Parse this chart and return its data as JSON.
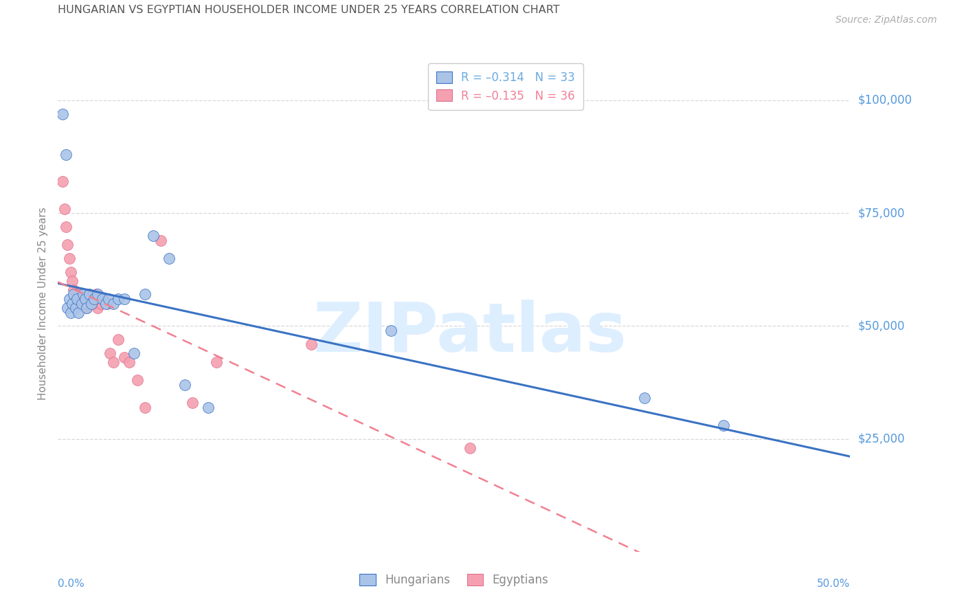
{
  "title": "HUNGARIAN VS EGYPTIAN HOUSEHOLDER INCOME UNDER 25 YEARS CORRELATION CHART",
  "source": "Source: ZipAtlas.com",
  "ylabel": "Householder Income Under 25 years",
  "right_yticks": [
    "$100,000",
    "$75,000",
    "$50,000",
    "$25,000"
  ],
  "right_ytick_values": [
    100000,
    75000,
    50000,
    25000
  ],
  "xlim": [
    0.0,
    0.5
  ],
  "ylim": [
    0,
    110000
  ],
  "watermark": "ZIPatlas",
  "legend": [
    {
      "label": "R = –0.314   N = 33",
      "color": "#6aaae0"
    },
    {
      "label": "R = –0.135   N = 36",
      "color": "#f08098"
    }
  ],
  "hungarian_x": [
    0.003,
    0.005,
    0.006,
    0.007,
    0.008,
    0.009,
    0.01,
    0.011,
    0.012,
    0.013,
    0.015,
    0.016,
    0.017,
    0.018,
    0.02,
    0.021,
    0.023,
    0.025,
    0.028,
    0.03,
    0.032,
    0.035,
    0.038,
    0.042,
    0.048,
    0.055,
    0.06,
    0.07,
    0.08,
    0.095,
    0.21,
    0.37,
    0.42
  ],
  "hungarian_y": [
    97000,
    88000,
    54000,
    56000,
    53000,
    55000,
    57000,
    54000,
    56000,
    53000,
    55000,
    57000,
    56000,
    54000,
    57000,
    55000,
    56000,
    57000,
    56000,
    55000,
    56000,
    55000,
    56000,
    56000,
    44000,
    57000,
    70000,
    65000,
    37000,
    32000,
    49000,
    34000,
    28000
  ],
  "egyptian_x": [
    0.003,
    0.004,
    0.005,
    0.006,
    0.007,
    0.008,
    0.009,
    0.01,
    0.011,
    0.012,
    0.013,
    0.014,
    0.015,
    0.016,
    0.017,
    0.018,
    0.019,
    0.02,
    0.022,
    0.024,
    0.025,
    0.027,
    0.029,
    0.031,
    0.033,
    0.035,
    0.038,
    0.042,
    0.045,
    0.05,
    0.055,
    0.065,
    0.085,
    0.1,
    0.16,
    0.26
  ],
  "egyptian_y": [
    82000,
    76000,
    72000,
    68000,
    65000,
    62000,
    60000,
    58000,
    57000,
    56000,
    55000,
    57000,
    56000,
    55000,
    57000,
    54000,
    55000,
    56000,
    55000,
    57000,
    54000,
    55000,
    56000,
    55000,
    44000,
    42000,
    47000,
    43000,
    42000,
    38000,
    32000,
    69000,
    33000,
    42000,
    46000,
    23000
  ],
  "hungarian_line_color": "#3a72c4",
  "egyptian_line_color": "#f08090",
  "hungarian_marker_color": "#aac4e8",
  "egyptian_marker_color": "#f4a0b0",
  "background_color": "#ffffff",
  "grid_color": "#d8d8d8",
  "title_color": "#555555",
  "right_axis_color": "#5599dd",
  "watermark_color": "#ddeeff"
}
